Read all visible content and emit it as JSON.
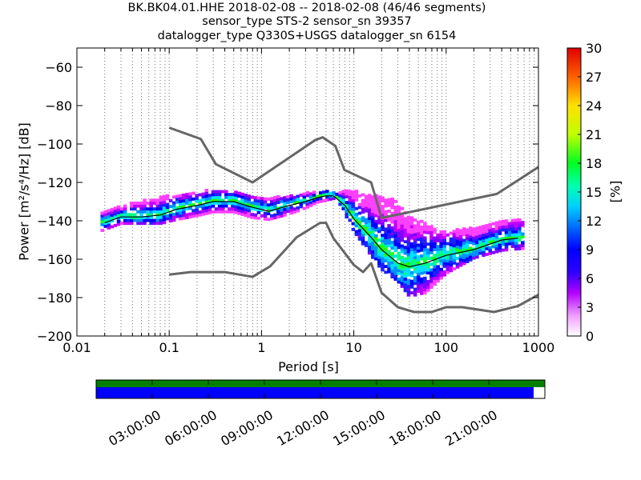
{
  "chart_data": {
    "type": "heatmap",
    "title_lines": [
      "BK.BK04.01.HHE   2018-02-08 -- 2018-02-08  (46/46 segments)",
      "sensor_type STS-2 sensor_sn 39357",
      "datalogger_type Q330S+USGS datalogger_sn 6154"
    ],
    "xlabel": "Period [s]",
    "ylabel": "Power [m²/s⁴/Hz] [dB]",
    "x_scale": "log",
    "xlim": [
      0.01,
      1000
    ],
    "ylim": [
      -200,
      -50
    ],
    "x_ticks": [
      0.01,
      0.1,
      1,
      10,
      100,
      1000
    ],
    "x_tick_labels": [
      "0.01",
      "0.1",
      "1",
      "10",
      "100",
      "1000"
    ],
    "y_ticks": [
      -200,
      -180,
      -160,
      -140,
      -120,
      -100,
      -80,
      -60
    ],
    "y_tick_labels": [
      "−200",
      "−180",
      "−160",
      "−140",
      "−120",
      "−100",
      "−80",
      "−60"
    ],
    "grid": "dotted vertical",
    "colorbar": {
      "label": "[%]",
      "range": [
        0,
        30
      ],
      "ticks": [
        0,
        3,
        6,
        9,
        12,
        15,
        18,
        21,
        24,
        27,
        30
      ],
      "tick_labels": [
        "0",
        "3",
        "6",
        "9",
        "12",
        "15",
        "18",
        "21",
        "24",
        "27",
        "30"
      ]
    },
    "nhnm": {
      "x": [
        0.1,
        0.22,
        0.32,
        0.8,
        3.8,
        4.6,
        6.3,
        7.9,
        15.4,
        20,
        354.8,
        1000
      ],
      "y": [
        -91.5,
        -97.4,
        -110.5,
        -120,
        -98,
        -96.5,
        -101,
        -113.5,
        -120,
        -138.5,
        -126,
        -112
      ]
    },
    "nlnm": {
      "x": [
        0.1,
        0.17,
        0.4,
        0.8,
        1.24,
        2.4,
        4.3,
        5,
        6,
        10,
        12.6,
        15.4,
        20,
        30,
        45,
        70,
        100,
        150,
        330,
        600,
        1000
      ],
      "y": [
        -168,
        -166.7,
        -166.7,
        -169.2,
        -163.7,
        -148.6,
        -141.1,
        -141.1,
        -149,
        -163,
        -166.7,
        -162.1,
        -177.5,
        -185,
        -187.5,
        -187.5,
        -185,
        -185,
        -187.5,
        -184.4,
        -178.5
      ]
    },
    "mean_psd": {
      "x": [
        0.02,
        0.03,
        0.05,
        0.08,
        0.12,
        0.2,
        0.3,
        0.5,
        0.8,
        1.2,
        2,
        3,
        4,
        5,
        6,
        8,
        10,
        15,
        20,
        30,
        40,
        60,
        100,
        200,
        400,
        600
      ],
      "y": [
        -141,
        -138,
        -138,
        -137,
        -134,
        -132,
        -130,
        -130,
        -133,
        -135,
        -132,
        -130,
        -128,
        -127,
        -127,
        -132,
        -139,
        -148,
        -155,
        -162,
        -164,
        -162,
        -158,
        -155,
        -150,
        -149
      ]
    },
    "heatmap_band": {
      "x": [
        0.018,
        0.03,
        0.05,
        0.08,
        0.12,
        0.2,
        0.3,
        0.5,
        0.8,
        1.2,
        2,
        3,
        4,
        5,
        6,
        8,
        10,
        15,
        20,
        30,
        40,
        60,
        100,
        200,
        400,
        700
      ],
      "lower": [
        -146,
        -142,
        -142,
        -142,
        -140,
        -138,
        -136,
        -136,
        -139,
        -140,
        -137,
        -134,
        -131,
        -130,
        -129,
        -137,
        -146,
        -158,
        -166,
        -172,
        -180,
        -178,
        -168,
        -160,
        -156,
        -155
      ],
      "upper": [
        -136,
        -133,
        -130,
        -128,
        -127,
        -126,
        -124,
        -124,
        -128,
        -129,
        -127,
        -126,
        -125,
        -125,
        -126,
        -124,
        -125,
        -127,
        -128,
        -130,
        -138,
        -142,
        -146,
        -144,
        -140,
        -140
      ]
    },
    "time_axis": {
      "labels": [
        "03:00:00",
        "06:00:00",
        "09:00:00",
        "12:00:00",
        "15:00:00",
        "18:00:00",
        "21:00:00"
      ],
      "coverage_fraction": 0.975
    }
  }
}
